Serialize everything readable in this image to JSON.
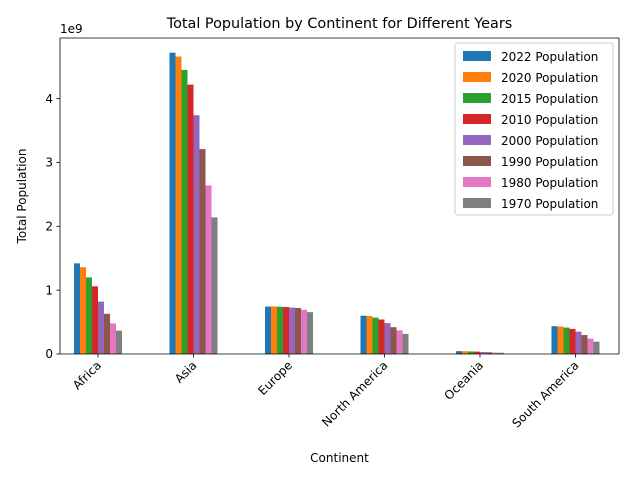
{
  "chart_data": {
    "type": "bar",
    "title": "Total Population by Continent for Different Years",
    "xlabel": "Continent",
    "ylabel": "Total Population",
    "y_offset_label": "1e9",
    "ylim": [
      0,
      4.95
    ],
    "y_ticks": [
      0,
      1,
      2,
      3,
      4
    ],
    "y_unit_multiplier": 1000000000,
    "legend_position": "top-right",
    "grid": false,
    "categories": [
      "Africa",
      "Asia",
      "Europe",
      "North America",
      "Oceania",
      "South America"
    ],
    "series": [
      {
        "name": "2022 Population",
        "color": "#1f77b4",
        "values": [
          1.42,
          4.72,
          0.743,
          0.6,
          0.045,
          0.436
        ]
      },
      {
        "name": "2020 Population",
        "color": "#ff7f0e",
        "values": [
          1.36,
          4.66,
          0.745,
          0.595,
          0.044,
          0.431
        ]
      },
      {
        "name": "2015 Population",
        "color": "#2ca02c",
        "values": [
          1.2,
          4.45,
          0.741,
          0.57,
          0.04,
          0.414
        ]
      },
      {
        "name": "2010 Population",
        "color": "#d62728",
        "values": [
          1.06,
          4.22,
          0.736,
          0.54,
          0.037,
          0.393
        ]
      },
      {
        "name": "2000 Population",
        "color": "#9467bd",
        "values": [
          0.82,
          3.74,
          0.727,
          0.485,
          0.031,
          0.35
        ]
      },
      {
        "name": "1990 Population",
        "color": "#8c564b",
        "values": [
          0.63,
          3.21,
          0.721,
          0.42,
          0.027,
          0.297
        ]
      },
      {
        "name": "1980 Population",
        "color": "#e377c2",
        "values": [
          0.48,
          2.64,
          0.693,
          0.37,
          0.023,
          0.241
        ]
      },
      {
        "name": "1970 Population",
        "color": "#7f7f7f",
        "values": [
          0.366,
          2.14,
          0.656,
          0.315,
          0.019,
          0.193
        ]
      }
    ]
  }
}
